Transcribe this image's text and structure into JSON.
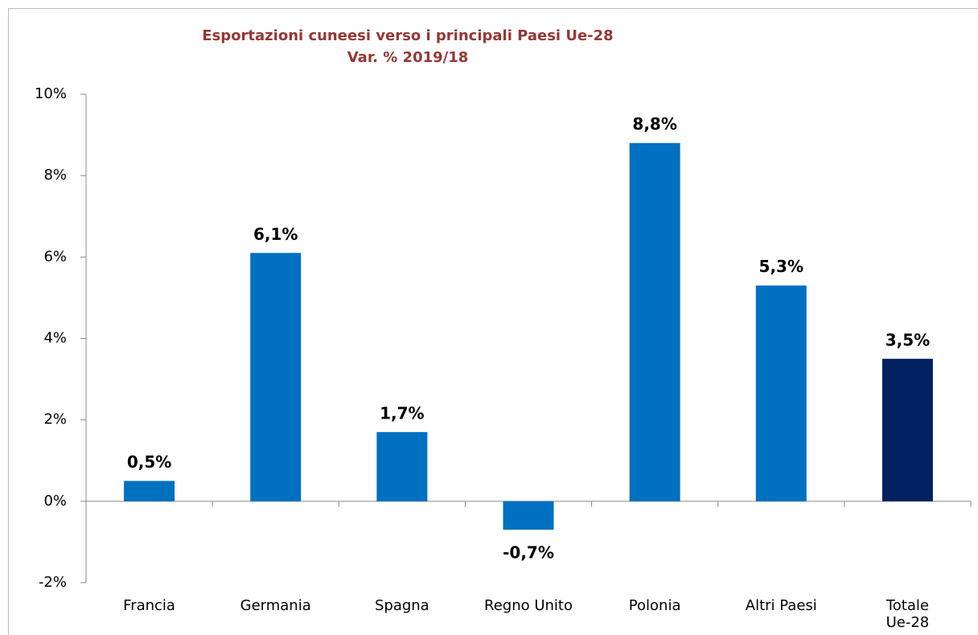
{
  "chart_data": {
    "type": "bar",
    "title": "Esportazioni cuneesi verso i principali Paesi  Ue-28",
    "subtitle": "Var. % 2019/18",
    "categories": [
      "Francia",
      "Germania",
      "Spagna",
      "Regno Unito",
      "Polonia",
      "Altri Paesi",
      "Totale\nUe-28"
    ],
    "values": [
      0.5,
      6.1,
      1.7,
      -0.7,
      8.8,
      5.3,
      3.5
    ],
    "value_labels": [
      "0,5%",
      "6,1%",
      "1,7%",
      "-0,7%",
      "8,8%",
      "5,3%",
      "3,5%"
    ],
    "colors": [
      "#0070c0",
      "#0070c0",
      "#0070c0",
      "#0070c0",
      "#0070c0",
      "#0070c0",
      "#002060"
    ],
    "ylim": [
      -2,
      10
    ],
    "yticks": [
      {
        "value": -2,
        "label": "-2%"
      },
      {
        "value": 0,
        "label": "0%"
      },
      {
        "value": 2,
        "label": "2%"
      },
      {
        "value": 4,
        "label": "4%"
      },
      {
        "value": 6,
        "label": "6%"
      },
      {
        "value": 8,
        "label": "8%"
      },
      {
        "value": 10,
        "label": "10%"
      }
    ],
    "grid": false
  }
}
